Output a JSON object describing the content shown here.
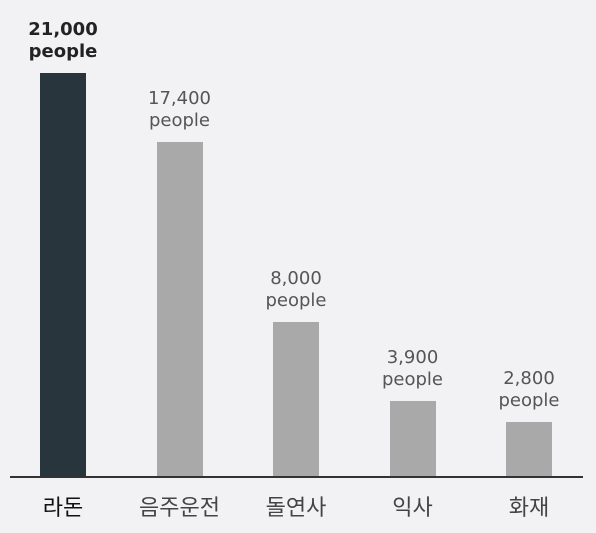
{
  "chart_data": {
    "type": "bar",
    "categories": [
      "라돈",
      "음주운전",
      "돌연사",
      "익사",
      "화재"
    ],
    "values": [
      21000,
      17400,
      8000,
      3900,
      2800
    ],
    "value_labels": [
      "21,000 people",
      "17,400 people",
      "8,000 people",
      "3,900 people",
      "2,800 people"
    ],
    "colors": [
      "#29353d",
      "#a9a9a9",
      "#a9a9a9",
      "#a9a9a9",
      "#a9a9a9"
    ],
    "highlight": 0
  }
}
